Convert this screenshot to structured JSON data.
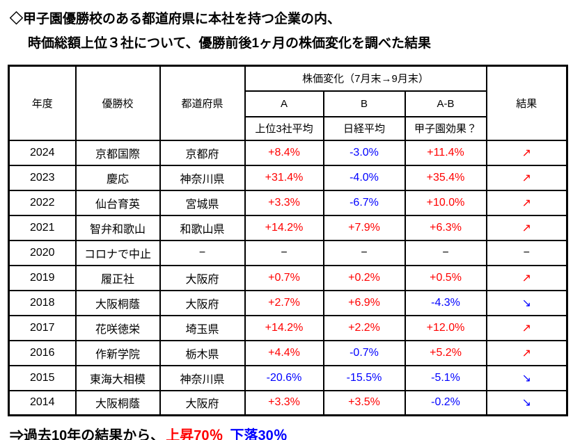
{
  "title": {
    "line1": "◇甲子園優勝校のある都道府県に本社を持つ企業の内、",
    "line2": "時価総額上位３社について、優勝前後1ヶ月の株価変化を調べた結果"
  },
  "colors": {
    "red": "#ff0000",
    "blue": "#0000ff",
    "black": "#000000"
  },
  "chart_data": {
    "type": "table",
    "title": "甲子園優勝校のある都道府県に本社を持つ企業の株価変化",
    "group_header": "株価変化（7月末→9月末）",
    "columns": {
      "year": "年度",
      "school": "優勝校",
      "prefecture": "都道府県",
      "col_a": "A",
      "col_b": "B",
      "col_ab": "A-B",
      "sub_a": "上位3社平均",
      "sub_b": "日経平均",
      "sub_ab": "甲子園効果？",
      "result": "結果"
    },
    "rows": [
      {
        "year": "2024",
        "school": "京都国際",
        "prefecture": "京都府",
        "a": "+8.4%",
        "a_color": "red",
        "b": "-3.0%",
        "b_color": "blue",
        "ab": "+11.4%",
        "ab_color": "red",
        "result": "↗",
        "result_color": "red"
      },
      {
        "year": "2023",
        "school": "慶応",
        "prefecture": "神奈川県",
        "a": "+31.4%",
        "a_color": "red",
        "b": "-4.0%",
        "b_color": "blue",
        "ab": "+35.4%",
        "ab_color": "red",
        "result": "↗",
        "result_color": "red"
      },
      {
        "year": "2022",
        "school": "仙台育英",
        "prefecture": "宮城県",
        "a": "+3.3%",
        "a_color": "red",
        "b": "-6.7%",
        "b_color": "blue",
        "ab": "+10.0%",
        "ab_color": "red",
        "result": "↗",
        "result_color": "red"
      },
      {
        "year": "2021",
        "school": "智弁和歌山",
        "prefecture": "和歌山県",
        "a": "+14.2%",
        "a_color": "red",
        "b": "+7.9%",
        "b_color": "red",
        "ab": "+6.3%",
        "ab_color": "red",
        "result": "↗",
        "result_color": "red"
      },
      {
        "year": "2020",
        "school": "コロナで中止",
        "prefecture": "−",
        "a": "−",
        "a_color": "black",
        "b": "−",
        "b_color": "black",
        "ab": "−",
        "ab_color": "black",
        "result": "−",
        "result_color": "black"
      },
      {
        "year": "2019",
        "school": "履正社",
        "prefecture": "大阪府",
        "a": "+0.7%",
        "a_color": "red",
        "b": "+0.2%",
        "b_color": "red",
        "ab": "+0.5%",
        "ab_color": "red",
        "result": "↗",
        "result_color": "red"
      },
      {
        "year": "2018",
        "school": "大阪桐蔭",
        "prefecture": "大阪府",
        "a": "+2.7%",
        "a_color": "red",
        "b": "+6.9%",
        "b_color": "red",
        "ab": "-4.3%",
        "ab_color": "blue",
        "result": "↘",
        "result_color": "blue"
      },
      {
        "year": "2017",
        "school": "花咲徳栄",
        "prefecture": "埼玉県",
        "a": "+14.2%",
        "a_color": "red",
        "b": "+2.2%",
        "b_color": "red",
        "ab": "+12.0%",
        "ab_color": "red",
        "result": "↗",
        "result_color": "red"
      },
      {
        "year": "2016",
        "school": "作新学院",
        "prefecture": "栃木県",
        "a": "+4.4%",
        "a_color": "red",
        "b": "-0.7%",
        "b_color": "blue",
        "ab": "+5.2%",
        "ab_color": "red",
        "result": "↗",
        "result_color": "red"
      },
      {
        "year": "2015",
        "school": "東海大相模",
        "prefecture": "神奈川県",
        "a": "-20.6%",
        "a_color": "blue",
        "b": "-15.5%",
        "b_color": "blue",
        "ab": "-5.1%",
        "ab_color": "blue",
        "result": "↘",
        "result_color": "blue"
      },
      {
        "year": "2014",
        "school": "大阪桐蔭",
        "prefecture": "大阪府",
        "a": "+3.3%",
        "a_color": "red",
        "b": "+3.5%",
        "b_color": "red",
        "ab": "-0.2%",
        "ab_color": "blue",
        "result": "↘",
        "result_color": "blue"
      }
    ]
  },
  "summary": {
    "prefix": "⇒過去10年の結果から、",
    "up": "上昇70％",
    "down": "下落30％"
  }
}
